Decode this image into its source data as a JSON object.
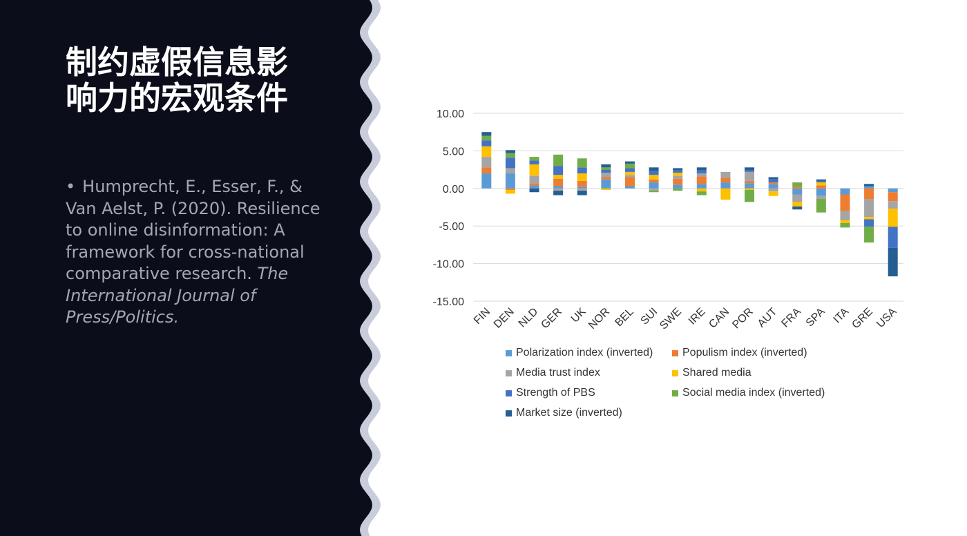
{
  "slide": {
    "title_line1": "制约虚假信息影",
    "title_line2": "响力的宏观条件",
    "citation_bullet": "•",
    "citation_text": "Humprecht, E., Esser, F., & Van Aelst, P. (2020). Resilience to online disinformation: A framework for cross-national comparative research. ",
    "citation_journal": "The International Journal of Press/Politics.",
    "colors": {
      "panel": "#0b0e1a",
      "wave_edge": "#c9ccdb",
      "citation": "#a3a8b0"
    }
  },
  "chart_data": {
    "type": "bar",
    "stacked": true,
    "title": "",
    "xlabel": "",
    "ylabel": "",
    "ylim": [
      -15,
      10
    ],
    "yticks": [
      "10.00",
      "5.00",
      "0.00",
      "-5.00",
      "-10.00",
      "-15.00"
    ],
    "grid": true,
    "legend_position": "bottom",
    "categories": [
      "FIN",
      "DEN",
      "NLD",
      "GER",
      "UK",
      "NOR",
      "BEL",
      "SUI",
      "SWE",
      "IRE",
      "CAN",
      "POR",
      "AUT",
      "FRA",
      "SPA",
      "ITA",
      "GRE",
      "USA"
    ],
    "series": [
      {
        "name": "Polarization index (inverted)",
        "color": "#5b9bd5",
        "values": [
          2.0,
          2.0,
          0.4,
          0.3,
          0.2,
          1.2,
          0.3,
          0.8,
          0.5,
          0.6,
          0.8,
          0.7,
          0.6,
          -0.8,
          -1.0,
          -0.8,
          0.3,
          -0.5
        ]
      },
      {
        "name": "Populism index (inverted)",
        "color": "#ed7d31",
        "values": [
          0.8,
          -0.2,
          0.3,
          1.0,
          0.8,
          0.3,
          1.2,
          0.4,
          0.8,
          1.0,
          0.6,
          0.3,
          0.2,
          0.2,
          0.4,
          -2.2,
          -1.4,
          -1.2
        ]
      },
      {
        "name": "Media trust index",
        "color": "#a5a5a5",
        "values": [
          1.4,
          0.7,
          1.0,
          -0.3,
          -0.3,
          0.6,
          0.3,
          -0.3,
          0.4,
          0.4,
          0.8,
          1.2,
          -0.4,
          -1.0,
          -0.4,
          -1.2,
          -2.4,
          -1.0
        ]
      },
      {
        "name": "Shared media",
        "color": "#ffc000",
        "values": [
          1.4,
          -0.5,
          1.5,
          0.5,
          1.0,
          -0.2,
          0.4,
          0.6,
          0.4,
          -0.4,
          -1.5,
          -0.2,
          -0.6,
          -0.6,
          0.4,
          -0.4,
          -0.3,
          -2.4
        ]
      },
      {
        "name": "Strength of PBS",
        "color": "#4472c4",
        "values": [
          0.8,
          1.4,
          0.5,
          1.2,
          0.8,
          0.4,
          0.5,
          0.5,
          0.3,
          0.4,
          0.0,
          0.2,
          0.4,
          0.0,
          0.2,
          0.0,
          -1.0,
          -2.8
        ]
      },
      {
        "name": "Social media index (inverted)",
        "color": "#70ad47",
        "values": [
          0.6,
          0.6,
          0.5,
          1.5,
          1.2,
          0.3,
          0.6,
          -0.2,
          -0.3,
          -0.5,
          0.0,
          -1.6,
          0.0,
          0.6,
          -1.8,
          -0.6,
          -2.1,
          0.0
        ]
      },
      {
        "name": "Market size (inverted)",
        "color": "#255e91",
        "values": [
          0.5,
          0.4,
          -0.5,
          -0.6,
          -0.6,
          0.4,
          0.3,
          0.5,
          0.3,
          0.4,
          0.0,
          0.4,
          0.3,
          -0.4,
          0.2,
          0.0,
          0.3,
          -3.8
        ]
      }
    ]
  }
}
